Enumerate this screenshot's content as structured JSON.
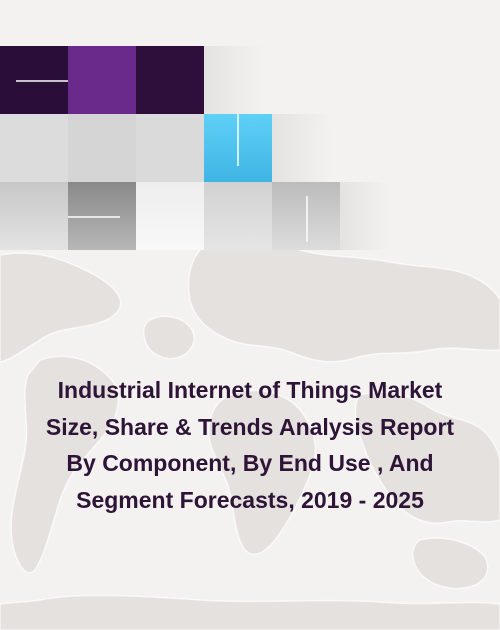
{
  "report": {
    "title_lines": [
      "Industrial Internet of Things Market",
      "Size, Share & Trends Analysis Report",
      "By Component, By End Use , And",
      "Segment Forecasts, 2019 - 2025"
    ]
  },
  "colors": {
    "background": "#f4f2f0",
    "title": "#2e1436",
    "tile_dark_purple": "#2b0d3a",
    "tile_purple": "#6a2a8c",
    "tile_blue": "#4fc3ec",
    "tile_gray_light": "#d9d8d8",
    "tile_gray_dark": "#8c8b8c",
    "map": "#e7e3e0"
  }
}
